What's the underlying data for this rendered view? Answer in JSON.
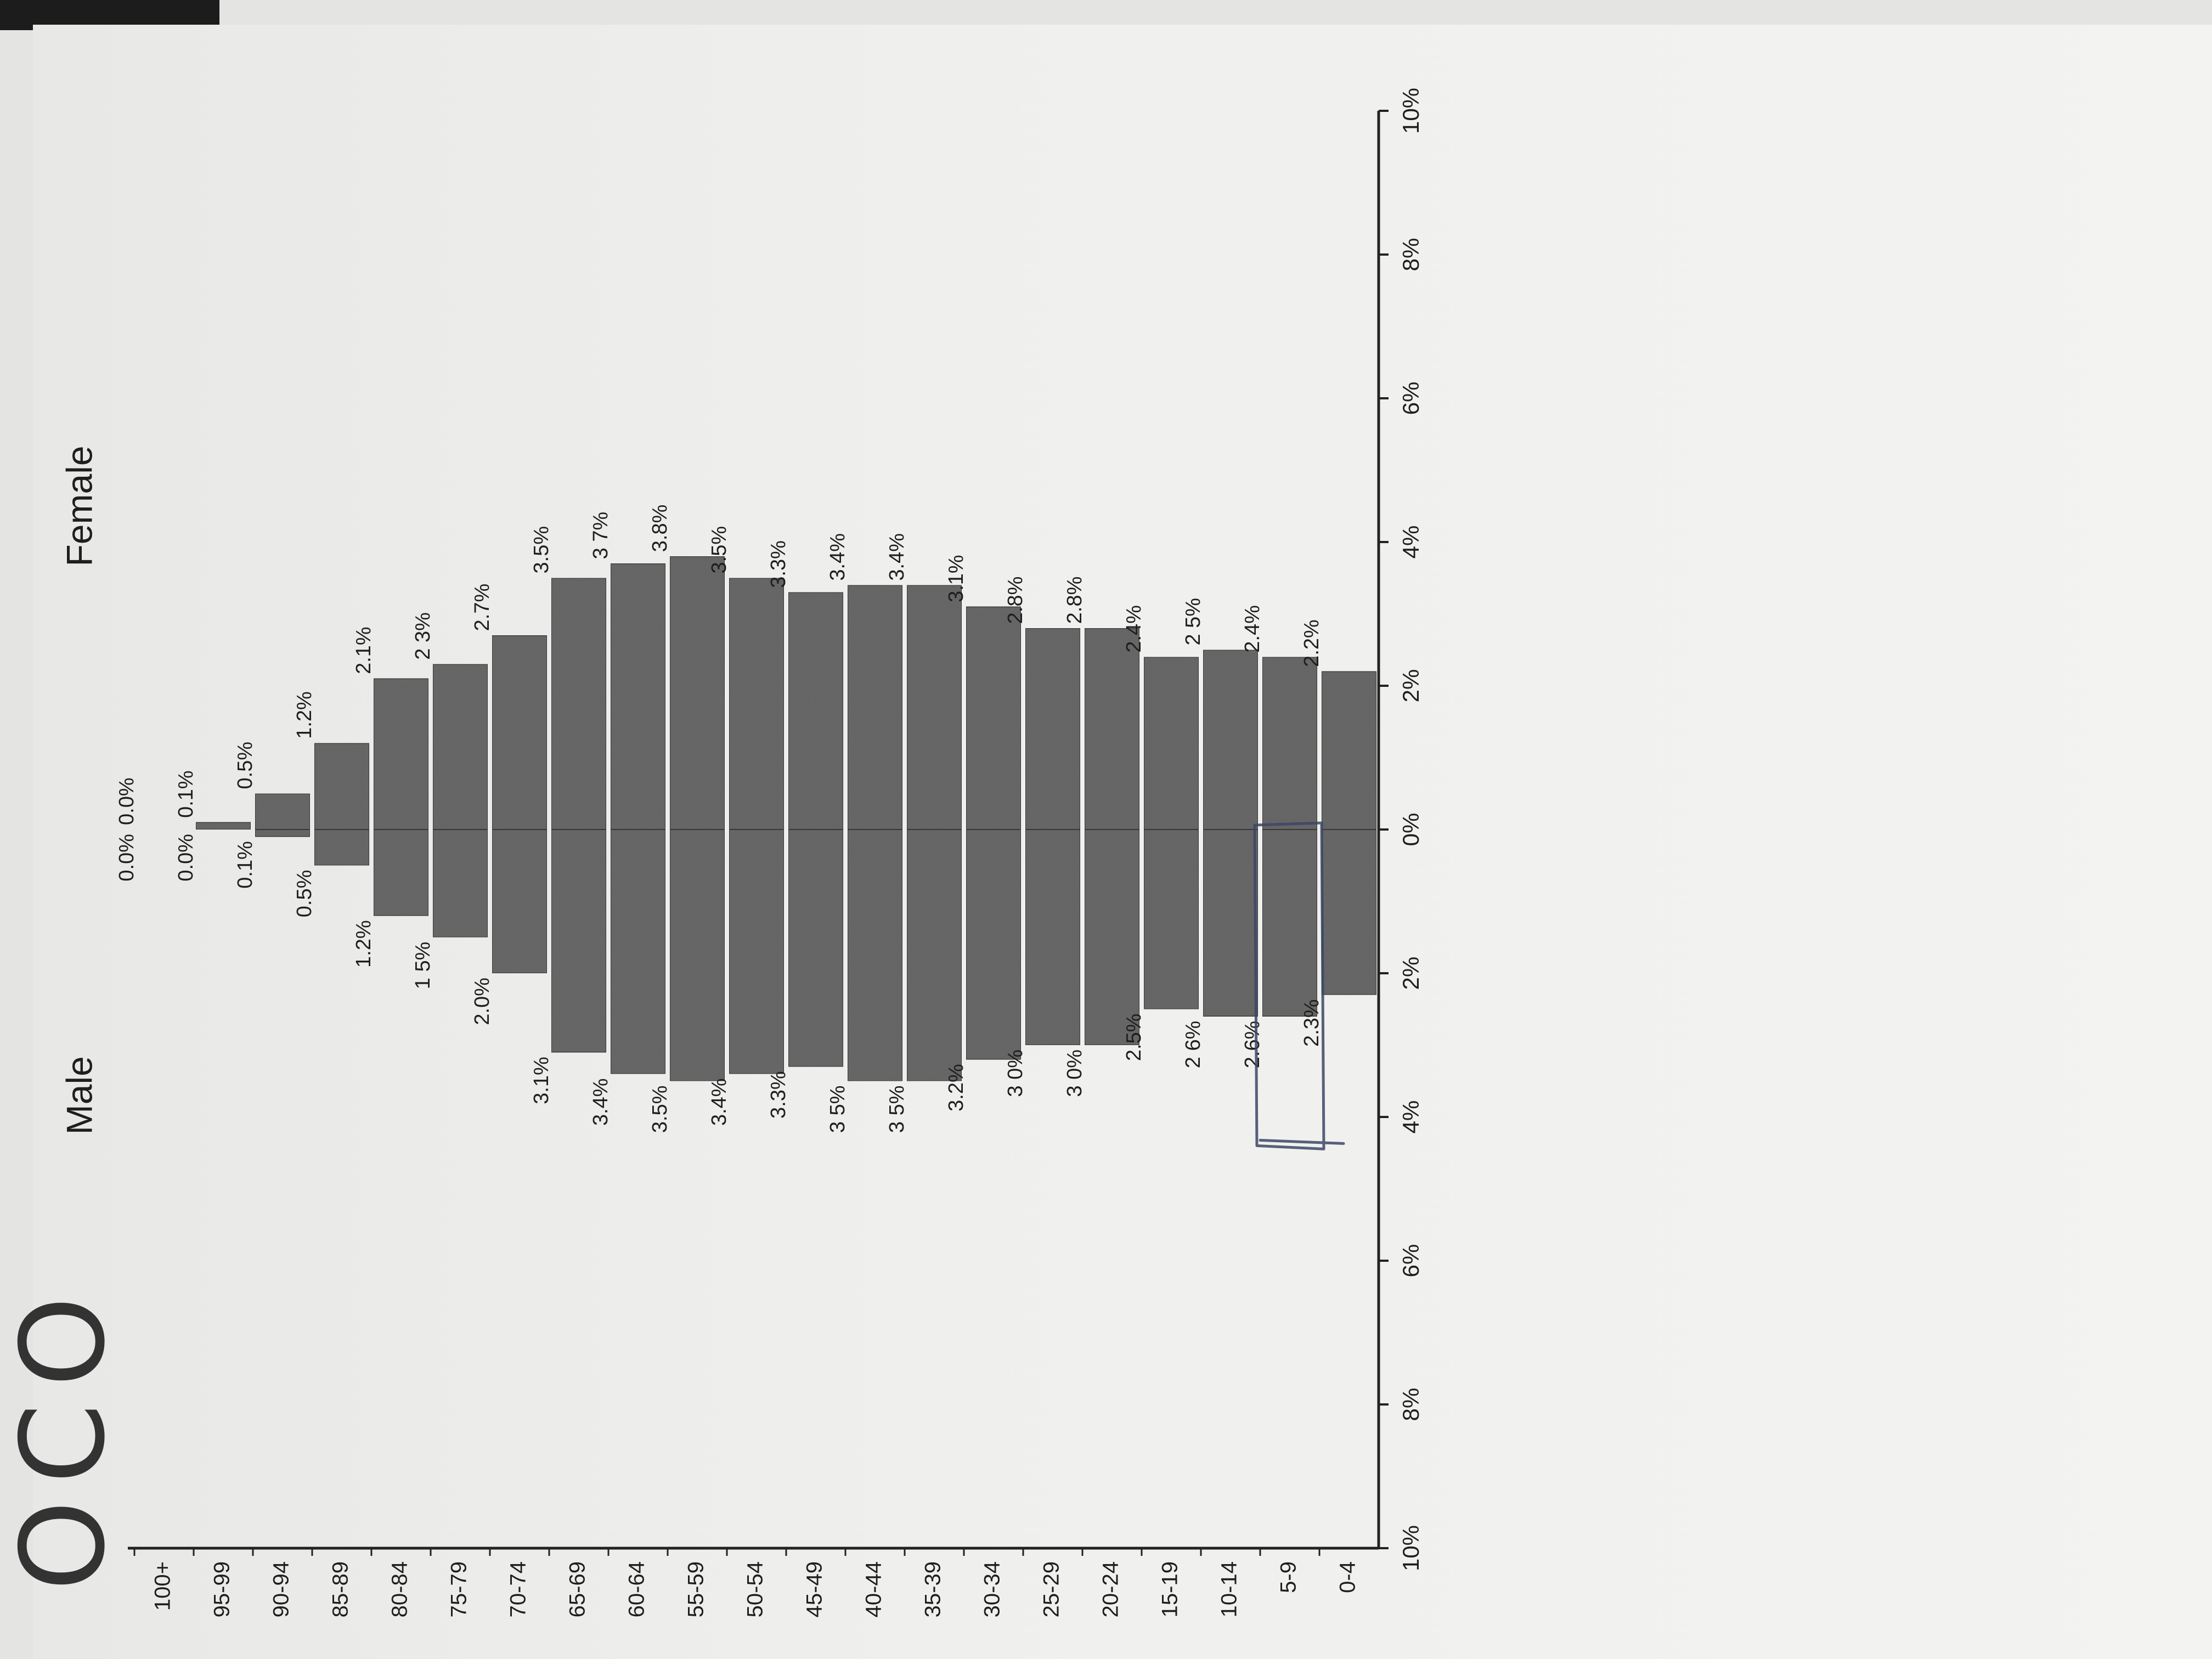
{
  "chart_data": {
    "type": "bar",
    "subtype": "population-pyramid",
    "orientation": "horizontal",
    "title": "",
    "side_labels": {
      "male": "Male",
      "female": "Female"
    },
    "categories": [
      "100+",
      "95-99",
      "90-94",
      "85-89",
      "80-84",
      "75-79",
      "70-74",
      "65-69",
      "60-64",
      "55-59",
      "50-54",
      "45-49",
      "40-44",
      "35-39",
      "30-34",
      "25-29",
      "20-24",
      "15-19",
      "10-14",
      "5-9",
      "0-4"
    ],
    "series": [
      {
        "name": "Male",
        "values": [
          0.0,
          0.0,
          0.1,
          0.5,
          1.2,
          1.5,
          2.0,
          3.1,
          3.4,
          3.5,
          3.4,
          3.3,
          3.5,
          3.5,
          3.2,
          3.0,
          3.0,
          2.5,
          2.6,
          2.6,
          2.3
        ],
        "labels": [
          "0.0%",
          "0.0%",
          "0.1%",
          "0.5%",
          "1.2%",
          "1 5%",
          "2.0%",
          "3.1%",
          "3.4%",
          "3.5%",
          "3.4%",
          "3.3%",
          "3 5%",
          "3 5%",
          "3.2%",
          "3 0%",
          "3 0%",
          "2.5%",
          "2 6%",
          "2.6%",
          "2.3%"
        ]
      },
      {
        "name": "Female",
        "values": [
          0.0,
          0.1,
          0.5,
          1.2,
          2.1,
          2.3,
          2.7,
          3.5,
          3.7,
          3.8,
          3.5,
          3.3,
          3.4,
          3.4,
          3.1,
          2.8,
          2.8,
          2.4,
          2.5,
          2.4,
          2.2
        ],
        "labels": [
          "0.0%",
          "0.1%",
          "0.5%",
          "1.2%",
          "2.1%",
          "2 3%",
          "2.7%",
          "3.5%",
          "3 7%",
          "3.8%",
          "3.5%",
          "3.3%",
          "3.4%",
          "3.4%",
          "3.1%",
          "2.8%",
          "2.8%",
          "2.4%",
          "2 5%",
          "2.4%",
          "2.2%"
        ]
      }
    ],
    "value_axis": {
      "range": [
        -10,
        10
      ],
      "ticks": [
        -10,
        -8,
        -6,
        -4,
        -2,
        0,
        2,
        4,
        6,
        8,
        10
      ],
      "tick_labels": [
        "10%",
        "8%",
        "6%",
        "4%",
        "2%",
        "0%",
        "2%",
        "4%",
        "6%",
        "8%",
        "10%"
      ]
    },
    "grid": false,
    "bar_color": "#6a6a6a",
    "annotation": "hand-drawn rectangle around the 5-9 male bar"
  },
  "margin_note": "OCO"
}
